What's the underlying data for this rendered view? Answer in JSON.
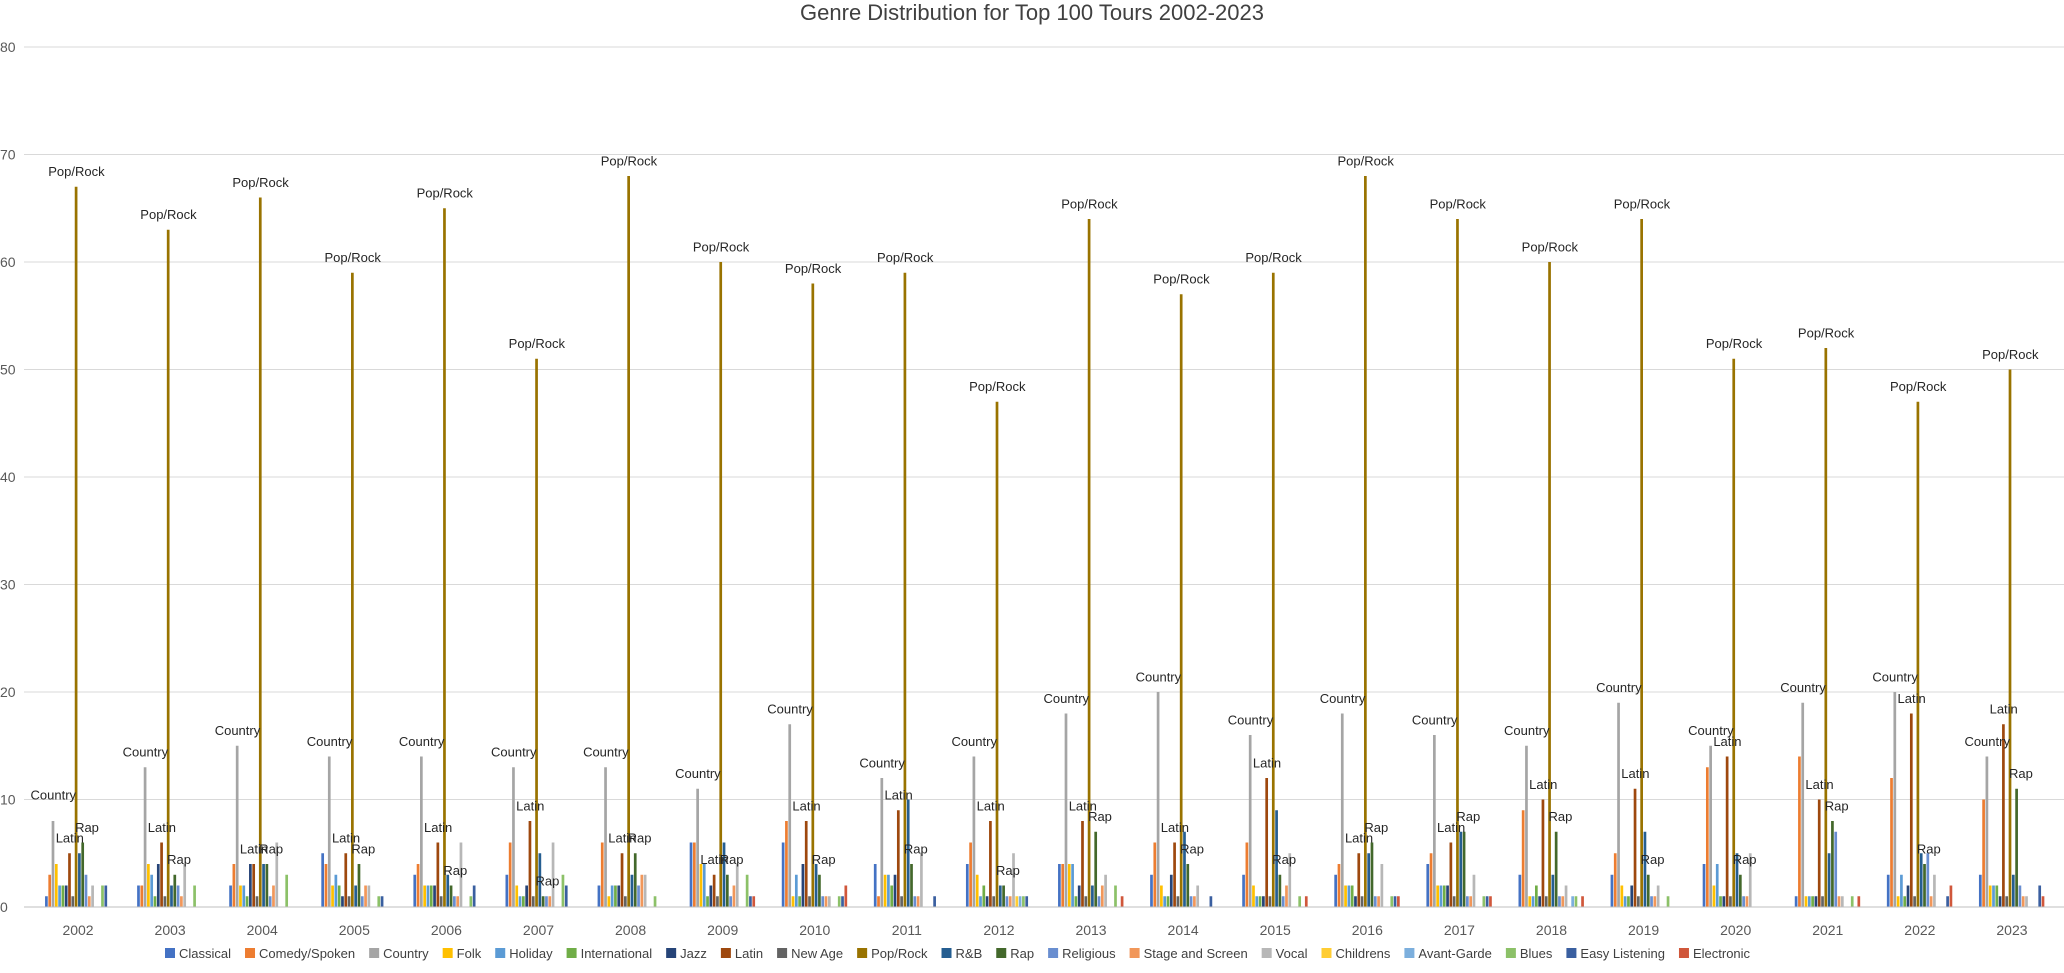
{
  "chart_data": {
    "type": "bar",
    "title": "Genre Distribution for Top 100 Tours 2002-2023",
    "xlabel": "",
    "ylabel": "",
    "ylim": [
      0,
      80
    ],
    "yticks": [
      0,
      10,
      20,
      30,
      40,
      50,
      60,
      70,
      80
    ],
    "grid": true,
    "legend_position": "bottom",
    "categories": [
      "2002",
      "2003",
      "2004",
      "2005",
      "2006",
      "2007",
      "2008",
      "2009",
      "2010",
      "2011",
      "2012",
      "2013",
      "2014",
      "2015",
      "2016",
      "2017",
      "2018",
      "2019",
      "2020",
      "2021",
      "2022",
      "2023"
    ],
    "series": [
      {
        "name": "Classical",
        "color": "#4472C4",
        "values": [
          1,
          2,
          2,
          5,
          3,
          3,
          2,
          6,
          6,
          4,
          4,
          4,
          3,
          3,
          3,
          4,
          3,
          3,
          4,
          1,
          3,
          3
        ]
      },
      {
        "name": "Comedy/Spoken",
        "color": "#ED7D31",
        "values": [
          3,
          2,
          4,
          4,
          4,
          6,
          6,
          6,
          8,
          1,
          6,
          4,
          6,
          6,
          4,
          5,
          9,
          5,
          13,
          14,
          12,
          10
        ]
      },
      {
        "name": "Country",
        "color": "#A5A5A5",
        "values": [
          8,
          13,
          15,
          14,
          14,
          13,
          13,
          11,
          17,
          12,
          14,
          18,
          20,
          16,
          18,
          16,
          15,
          19,
          15,
          19,
          20,
          14
        ]
      },
      {
        "name": "Folk",
        "color": "#FFC000",
        "values": [
          4,
          4,
          2,
          2,
          2,
          2,
          1,
          4,
          1,
          3,
          3,
          4,
          2,
          2,
          2,
          2,
          1,
          2,
          2,
          1,
          1,
          2
        ]
      },
      {
        "name": "Holiday",
        "color": "#5B9BD5",
        "values": [
          2,
          3,
          2,
          3,
          2,
          1,
          2,
          4,
          3,
          3,
          1,
          4,
          1,
          1,
          2,
          2,
          1,
          1,
          4,
          1,
          3,
          2
        ]
      },
      {
        "name": "International",
        "color": "#70AD47",
        "values": [
          2,
          1,
          1,
          2,
          2,
          1,
          2,
          1,
          1,
          2,
          2,
          1,
          1,
          1,
          2,
          2,
          2,
          1,
          1,
          1,
          1,
          2
        ]
      },
      {
        "name": "Jazz",
        "color": "#264478",
        "values": [
          2,
          4,
          4,
          1,
          2,
          2,
          2,
          2,
          4,
          3,
          1,
          2,
          3,
          1,
          1,
          2,
          1,
          2,
          1,
          1,
          2,
          1
        ]
      },
      {
        "name": "Latin",
        "color": "#9E480E",
        "values": [
          5,
          6,
          4,
          5,
          6,
          8,
          5,
          3,
          8,
          9,
          8,
          8,
          6,
          12,
          5,
          6,
          10,
          11,
          14,
          10,
          18,
          17
        ]
      },
      {
        "name": "New Age",
        "color": "#636363",
        "values": [
          1,
          1,
          1,
          1,
          1,
          1,
          1,
          1,
          1,
          1,
          1,
          1,
          1,
          1,
          1,
          1,
          1,
          1,
          1,
          1,
          1,
          1
        ]
      },
      {
        "name": "Pop/Rock",
        "color": "#997300",
        "values": [
          67,
          63,
          66,
          59,
          65,
          51,
          68,
          60,
          58,
          59,
          47,
          64,
          57,
          59,
          68,
          64,
          60,
          64,
          51,
          52,
          47,
          50
        ]
      },
      {
        "name": "R&B",
        "color": "#255E91",
        "values": [
          5,
          2,
          4,
          2,
          3,
          5,
          3,
          6,
          4,
          10,
          2,
          2,
          7,
          9,
          5,
          7,
          3,
          7,
          5,
          5,
          5,
          3
        ]
      },
      {
        "name": "Rap",
        "color": "#43682B",
        "values": [
          6,
          3,
          4,
          4,
          2,
          1,
          5,
          3,
          3,
          4,
          2,
          7,
          4,
          3,
          6,
          7,
          7,
          3,
          3,
          8,
          4,
          11
        ]
      },
      {
        "name": "Religious",
        "color": "#698ED0",
        "values": [
          3,
          2,
          1,
          1,
          1,
          1,
          2,
          1,
          1,
          1,
          1,
          1,
          1,
          1,
          1,
          1,
          1,
          1,
          1,
          7,
          5,
          2
        ]
      },
      {
        "name": "Stage and Screen",
        "color": "#F1975A",
        "values": [
          1,
          1,
          2,
          2,
          1,
          1,
          3,
          2,
          1,
          1,
          1,
          2,
          1,
          2,
          1,
          1,
          1,
          1,
          1,
          1,
          1,
          1
        ]
      },
      {
        "name": "Vocal",
        "color": "#B7B7B7",
        "values": [
          2,
          4,
          6,
          2,
          6,
          6,
          3,
          4,
          1,
          5,
          5,
          3,
          2,
          5,
          4,
          3,
          2,
          2,
          5,
          1,
          3,
          1
        ]
      },
      {
        "name": "Childrens",
        "color": "#FFCD33",
        "values": [
          0,
          0,
          0,
          0,
          0,
          0,
          0,
          0,
          0,
          0,
          1,
          0,
          0,
          0,
          0,
          0,
          0,
          0,
          0,
          0,
          0,
          0
        ]
      },
      {
        "name": "Avant-Garde",
        "color": "#7CAFDD",
        "values": [
          0,
          0,
          0,
          0,
          0,
          0,
          0,
          0,
          0,
          0,
          1,
          0,
          0,
          0,
          0,
          0,
          1,
          0,
          0,
          0,
          0,
          0
        ]
      },
      {
        "name": "Blues",
        "color": "#8CC168",
        "values": [
          2,
          2,
          3,
          1,
          1,
          3,
          1,
          3,
          1,
          0,
          1,
          2,
          0,
          1,
          1,
          1,
          1,
          1,
          0,
          1,
          0,
          0
        ]
      },
      {
        "name": "Easy Listening",
        "color": "#3A5FA0",
        "values": [
          2,
          0,
          0,
          1,
          2,
          2,
          0,
          1,
          1,
          1,
          1,
          0,
          1,
          0,
          1,
          1,
          0,
          0,
          0,
          0,
          1,
          2
        ]
      },
      {
        "name": "Electronic",
        "color": "#D0573B",
        "values": [
          0,
          0,
          0,
          0,
          0,
          0,
          0,
          1,
          2,
          0,
          0,
          1,
          0,
          1,
          1,
          1,
          1,
          0,
          0,
          1,
          2,
          1
        ]
      }
    ],
    "data_labels": {
      "Country": [
        10,
        14,
        16,
        15,
        15,
        14,
        14,
        12,
        18,
        13,
        15,
        19,
        21,
        17,
        19,
        17,
        16,
        20,
        16,
        20,
        21,
        15
      ],
      "Latin": [
        6,
        7,
        5,
        6,
        7,
        9,
        6,
        4,
        9,
        10,
        9,
        9,
        7,
        13,
        6,
        7,
        11,
        12,
        15,
        11,
        19,
        18
      ],
      "Pop/Rock": [
        68,
        64,
        67,
        60,
        66,
        52,
        69,
        61,
        59,
        60,
        48,
        65,
        58,
        60,
        69,
        65,
        61,
        65,
        52,
        53,
        48,
        51
      ],
      "Rap": [
        7,
        4,
        5,
        5,
        3,
        2,
        6,
        4,
        4,
        5,
        3,
        8,
        5,
        4,
        7,
        8,
        8,
        4,
        4,
        9,
        5,
        12
      ]
    }
  }
}
